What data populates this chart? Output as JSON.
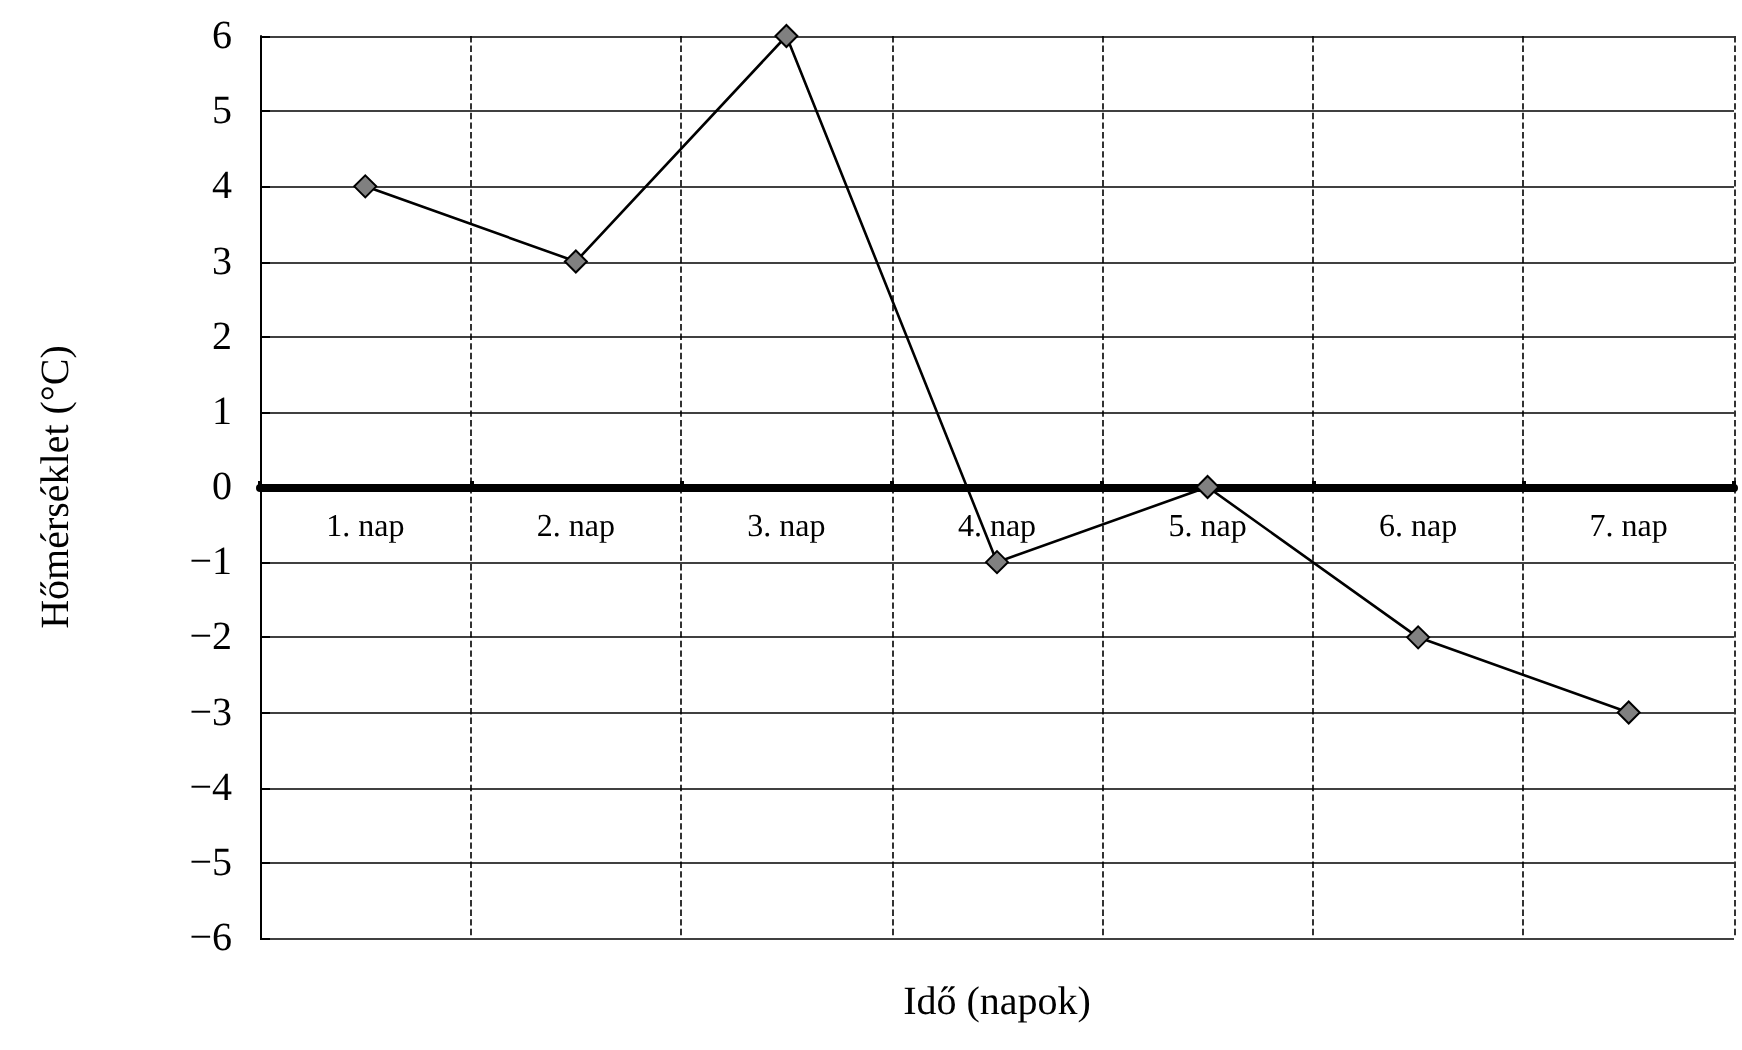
{
  "chart_data": {
    "type": "line",
    "xlabel": "Idő (napok)",
    "ylabel": "Hőmérséklet (°C)",
    "categories": [
      "1. nap",
      "2. nap",
      "3. nap",
      "4. nap",
      "5. nap",
      "6. nap",
      "7. nap"
    ],
    "series": [
      {
        "color": "#000000",
        "values": [
          4,
          3,
          6,
          -1,
          0,
          -2,
          -3
        ]
      }
    ],
    "ylim": [
      -6,
      6
    ],
    "yticks": [
      {
        "value": -6,
        "label": "−6"
      },
      {
        "value": -5,
        "label": "−5"
      },
      {
        "value": -4,
        "label": "−4"
      },
      {
        "value": -3,
        "label": "−3"
      },
      {
        "value": -2,
        "label": "−2"
      },
      {
        "value": -1,
        "label": "−1"
      },
      0,
      1,
      2,
      3,
      4,
      5,
      6
    ],
    "grid": true,
    "marker": "diamond",
    "line_style": "solid"
  }
}
